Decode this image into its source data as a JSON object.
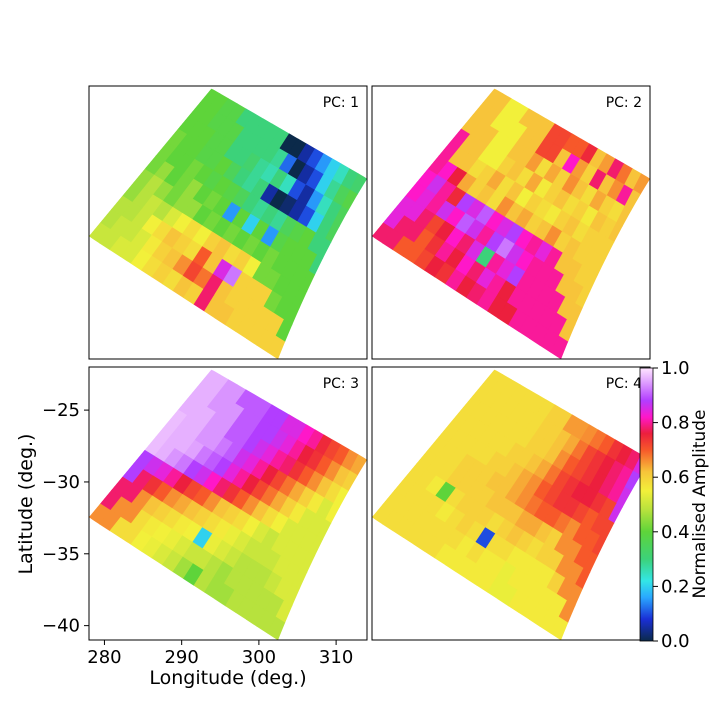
{
  "chart_data": {
    "type": "heatmap",
    "panels": [
      {
        "label": "PC: 1",
        "grid": [
          [
            null,
            null,
            null,
            null,
            null,
            null,
            null,
            null,
            null,
            null,
            0.0,
            0.05,
            0.1,
            0.15,
            0.2,
            0.25,
            0.3,
            0.32
          ],
          [
            null,
            null,
            null,
            null,
            null,
            null,
            null,
            null,
            0.3,
            0.28,
            0.12,
            0.0,
            0.05,
            0.1,
            0.2,
            0.28,
            0.35,
            0.38
          ],
          [
            null,
            null,
            null,
            null,
            null,
            null,
            0.3,
            0.32,
            0.28,
            0.26,
            0.3,
            0.25,
            0.1,
            0.05,
            0.15,
            0.25,
            0.3,
            0.35
          ],
          [
            null,
            null,
            null,
            null,
            0.38,
            0.4,
            0.35,
            0.3,
            0.28,
            0.3,
            0.05,
            0.0,
            0.02,
            0.05,
            0.1,
            0.2,
            0.3,
            null
          ],
          [
            null,
            null,
            0.4,
            0.42,
            0.4,
            0.38,
            0.4,
            0.38,
            0.35,
            0.3,
            0.28,
            0.3,
            0.28,
            0.35,
            0.38,
            0.4,
            null,
            null
          ],
          [
            0.42,
            0.45,
            0.4,
            0.42,
            0.45,
            0.4,
            0.42,
            0.4,
            0.15,
            0.4,
            0.2,
            0.4,
            0.15,
            0.38,
            0.4,
            null,
            null,
            null
          ],
          [
            0.45,
            0.48,
            0.45,
            0.42,
            0.45,
            0.45,
            0.4,
            0.42,
            0.4,
            0.42,
            0.4,
            0.42,
            0.4,
            0.42,
            null,
            null,
            null,
            null
          ],
          [
            null,
            0.48,
            0.5,
            0.48,
            0.52,
            0.55,
            0.58,
            0.55,
            0.6,
            0.62,
            0.58,
            0.6,
            0.55,
            null,
            null,
            null,
            null,
            null
          ],
          [
            null,
            null,
            0.5,
            0.55,
            0.58,
            0.62,
            0.6,
            0.58,
            0.7,
            0.62,
            0.85,
            0.92,
            0.6,
            null,
            null,
            null,
            null,
            null
          ],
          [
            null,
            null,
            null,
            0.52,
            0.56,
            0.6,
            0.62,
            0.66,
            0.72,
            0.68,
            0.78,
            0.62,
            null,
            null,
            null,
            null,
            null,
            null
          ],
          [
            null,
            null,
            null,
            null,
            0.55,
            0.58,
            0.6,
            0.58,
            0.62,
            0.6,
            null,
            null,
            null,
            null,
            null,
            null,
            null,
            null
          ]
        ]
      },
      {
        "label": "PC: 2",
        "grid": [
          [
            null,
            null,
            null,
            null,
            null,
            null,
            null,
            null,
            null,
            null,
            0.7,
            0.75,
            0.62,
            0.65,
            0.78,
            0.68,
            0.62,
            0.65
          ],
          [
            null,
            null,
            null,
            null,
            null,
            null,
            null,
            null,
            0.72,
            0.62,
            0.82,
            0.65,
            0.6,
            0.78,
            0.62,
            0.66,
            0.8,
            0.62
          ],
          [
            null,
            null,
            null,
            null,
            null,
            null,
            0.62,
            0.65,
            0.58,
            0.64,
            0.6,
            0.66,
            0.62,
            0.58,
            0.64,
            0.6,
            0.58,
            0.62
          ],
          [
            null,
            null,
            null,
            null,
            0.55,
            0.6,
            0.62,
            0.58,
            0.64,
            0.56,
            0.6,
            0.62,
            0.58,
            0.6,
            0.56,
            0.62,
            0.6,
            null
          ],
          [
            null,
            null,
            0.62,
            0.58,
            0.6,
            0.64,
            0.58,
            0.62,
            0.55,
            0.6,
            0.58,
            0.56,
            0.6,
            0.62,
            0.58,
            0.6,
            null,
            null
          ],
          [
            0.8,
            0.82,
            0.76,
            0.64,
            0.6,
            0.62,
            0.58,
            0.66,
            0.62,
            0.64,
            0.6,
            0.62,
            0.66,
            0.6,
            0.62,
            null,
            null,
            null
          ],
          [
            0.82,
            0.86,
            0.8,
            0.75,
            0.88,
            0.85,
            0.9,
            0.82,
            0.85,
            0.88,
            0.82,
            0.8,
            0.84,
            0.8,
            null,
            null,
            null,
            null
          ],
          [
            null,
            0.84,
            0.8,
            0.86,
            0.82,
            0.9,
            0.86,
            0.8,
            0.88,
            0.92,
            0.86,
            0.82,
            0.8,
            null,
            null,
            null,
            null,
            null
          ],
          [
            null,
            null,
            0.78,
            0.72,
            0.76,
            0.82,
            0.78,
            0.85,
            0.3,
            0.8,
            0.84,
            0.88,
            0.8,
            null,
            null,
            null,
            null,
            null
          ],
          [
            null,
            null,
            null,
            0.7,
            0.74,
            0.8,
            0.76,
            0.82,
            0.78,
            0.84,
            0.8,
            0.76,
            null,
            null,
            null,
            null,
            null,
            null
          ],
          [
            null,
            null,
            null,
            null,
            0.72,
            0.76,
            0.74,
            0.8,
            0.76,
            0.78,
            null,
            null,
            null,
            null,
            null,
            null,
            null,
            null
          ]
        ]
      },
      {
        "label": "PC: 3",
        "grid": [
          [
            null,
            null,
            null,
            null,
            null,
            null,
            null,
            null,
            null,
            null,
            0.85,
            0.82,
            0.8,
            0.75,
            0.72,
            0.7,
            0.66,
            0.64
          ],
          [
            null,
            null,
            null,
            null,
            null,
            null,
            null,
            null,
            0.88,
            0.86,
            0.84,
            0.8,
            0.76,
            0.74,
            0.7,
            0.66,
            0.62,
            0.6
          ],
          [
            null,
            null,
            null,
            null,
            null,
            null,
            0.9,
            0.88,
            0.86,
            0.84,
            0.8,
            0.78,
            0.74,
            0.7,
            0.66,
            0.62,
            0.58,
            0.55
          ],
          [
            null,
            null,
            null,
            null,
            0.94,
            0.92,
            0.9,
            0.86,
            0.84,
            0.8,
            0.76,
            0.72,
            0.68,
            0.64,
            0.6,
            0.56,
            0.52,
            null
          ],
          [
            null,
            null,
            0.96,
            0.95,
            0.92,
            0.9,
            0.88,
            0.84,
            0.8,
            0.76,
            0.72,
            0.68,
            0.64,
            0.6,
            0.56,
            0.52,
            null,
            null
          ],
          [
            0.97,
            0.96,
            0.94,
            0.92,
            0.88,
            0.86,
            0.82,
            0.78,
            0.74,
            0.7,
            0.66,
            0.62,
            0.58,
            0.55,
            0.52,
            null,
            null,
            null
          ],
          [
            0.88,
            0.86,
            0.84,
            0.8,
            0.76,
            0.72,
            0.7,
            0.66,
            0.62,
            0.6,
            0.58,
            0.55,
            0.52,
            0.5,
            null,
            null,
            null,
            null
          ],
          [
            null,
            0.78,
            0.74,
            0.7,
            0.66,
            0.64,
            0.62,
            0.6,
            0.58,
            0.56,
            0.54,
            0.52,
            0.5,
            null,
            null,
            null,
            null,
            null
          ],
          [
            null,
            null,
            0.66,
            0.62,
            0.6,
            0.58,
            0.56,
            0.55,
            0.2,
            0.54,
            0.52,
            0.5,
            0.48,
            null,
            null,
            null,
            null,
            null
          ],
          [
            null,
            null,
            null,
            0.58,
            0.56,
            0.55,
            0.54,
            0.52,
            0.5,
            0.5,
            0.48,
            0.46,
            null,
            null,
            null,
            null,
            null,
            null
          ],
          [
            null,
            null,
            null,
            null,
            0.55,
            0.54,
            0.52,
            0.5,
            0.46,
            0.4,
            null,
            null,
            null,
            null,
            null,
            null,
            null,
            null
          ]
        ]
      },
      {
        "label": "PC: 4",
        "grid": [
          [
            null,
            null,
            null,
            null,
            null,
            null,
            null,
            null,
            null,
            null,
            0.65,
            0.66,
            0.68,
            0.7,
            0.74,
            0.76,
            0.78,
            0.85
          ],
          [
            null,
            null,
            null,
            null,
            null,
            null,
            null,
            null,
            0.6,
            0.62,
            0.64,
            0.68,
            0.72,
            0.74,
            0.76,
            0.78,
            0.8,
            0.88
          ],
          [
            null,
            null,
            null,
            null,
            null,
            null,
            0.58,
            0.6,
            0.6,
            0.62,
            0.66,
            0.7,
            0.72,
            0.74,
            0.76,
            0.78,
            0.8,
            0.86
          ],
          [
            null,
            null,
            null,
            null,
            0.58,
            0.58,
            0.6,
            0.6,
            0.62,
            0.64,
            0.68,
            0.72,
            0.74,
            0.76,
            0.76,
            0.74,
            0.72,
            null
          ],
          [
            null,
            null,
            0.58,
            0.58,
            0.58,
            0.6,
            0.6,
            0.62,
            0.64,
            0.66,
            0.7,
            0.72,
            0.74,
            0.74,
            0.72,
            0.7,
            null,
            null
          ],
          [
            0.58,
            0.58,
            0.58,
            0.6,
            0.6,
            0.6,
            0.62,
            0.62,
            0.64,
            0.66,
            0.68,
            0.7,
            0.7,
            0.68,
            0.66,
            null,
            null,
            null
          ],
          [
            0.58,
            0.58,
            0.58,
            0.6,
            0.6,
            0.6,
            0.6,
            0.62,
            0.62,
            0.62,
            0.64,
            0.64,
            0.62,
            0.6,
            null,
            null,
            null,
            null
          ],
          [
            null,
            0.58,
            0.56,
            0.4,
            0.58,
            0.6,
            0.6,
            0.6,
            0.58,
            0.6,
            0.62,
            0.6,
            0.58,
            null,
            null,
            null,
            null,
            null
          ],
          [
            null,
            null,
            0.58,
            0.58,
            0.56,
            0.58,
            0.6,
            0.58,
            0.1,
            0.58,
            0.58,
            0.56,
            0.56,
            null,
            null,
            null,
            null,
            null
          ],
          [
            null,
            null,
            null,
            0.58,
            0.58,
            0.58,
            0.58,
            0.56,
            0.58,
            0.56,
            0.56,
            0.54,
            null,
            null,
            null,
            null,
            null,
            null
          ],
          [
            null,
            null,
            null,
            null,
            0.58,
            0.58,
            0.56,
            0.56,
            0.56,
            0.56,
            null,
            null,
            null,
            null,
            null,
            null,
            null,
            null
          ]
        ]
      }
    ],
    "xlabel": "Longitude (deg.)",
    "ylabel": "Latitude (deg.)",
    "xlim": [
      278,
      314
    ],
    "ylim": [
      -41,
      -22
    ],
    "xticks": [
      280,
      290,
      300,
      310
    ],
    "yticks": [
      -25,
      -30,
      -35,
      -40
    ],
    "colorbar": {
      "label": "Normalised Amplitude",
      "range": [
        0.0,
        1.0
      ],
      "ticks": [
        "0.0",
        "0.2",
        "0.4",
        "0.6",
        "0.8",
        "1.0"
      ],
      "colormap": "gist_ncar"
    },
    "grid": false
  }
}
